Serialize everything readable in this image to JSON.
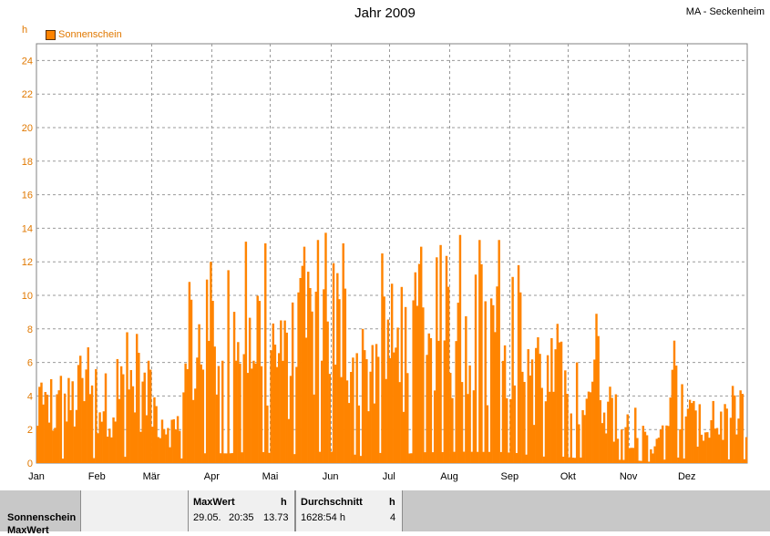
{
  "chart_data": {
    "type": "bar",
    "title": "Jahr 2009",
    "station": "MA - Seckenheim",
    "unit": "h",
    "series": [
      {
        "name": "Sonnenschein",
        "color": "#ff8400"
      }
    ],
    "ylim": [
      0,
      25
    ],
    "yticks": [
      0,
      2,
      4,
      6,
      8,
      10,
      12,
      14,
      16,
      18,
      20,
      22,
      24
    ],
    "months": [
      "Jan",
      "Feb",
      "Mär",
      "Apr",
      "Mai",
      "Jun",
      "Jul",
      "Aug",
      "Sep",
      "Okt",
      "Nov",
      "Dez"
    ],
    "month_start_days": [
      1,
      32,
      60,
      91,
      121,
      152,
      182,
      213,
      244,
      274,
      305,
      335
    ],
    "days_in_year": 365,
    "grid": true,
    "legend": "top-left",
    "approx_daily_peaks": [
      {
        "day": 3,
        "value": 4.8
      },
      {
        "day": 8,
        "value": 5.0
      },
      {
        "day": 13,
        "value": 5.2
      },
      {
        "day": 23,
        "value": 6.4
      },
      {
        "day": 27,
        "value": 6.9
      },
      {
        "day": 31,
        "value": 5.6
      },
      {
        "day": 42,
        "value": 6.2
      },
      {
        "day": 47,
        "value": 7.8
      },
      {
        "day": 52,
        "value": 7.7
      },
      {
        "day": 58,
        "value": 6.1
      },
      {
        "day": 73,
        "value": 2.8
      },
      {
        "day": 79,
        "value": 10.8
      },
      {
        "day": 90,
        "value": 12.0
      },
      {
        "day": 99,
        "value": 11.5
      },
      {
        "day": 108,
        "value": 13.2
      },
      {
        "day": 118,
        "value": 13.1
      },
      {
        "day": 128,
        "value": 8.5
      },
      {
        "day": 138,
        "value": 12.9
      },
      {
        "day": 145,
        "value": 13.3
      },
      {
        "day": 149,
        "value": 13.73
      },
      {
        "day": 158,
        "value": 13.1
      },
      {
        "day": 168,
        "value": 8.0
      },
      {
        "day": 178,
        "value": 12.5
      },
      {
        "day": 188,
        "value": 10.5
      },
      {
        "day": 198,
        "value": 12.9
      },
      {
        "day": 208,
        "value": 13.0
      },
      {
        "day": 218,
        "value": 13.6
      },
      {
        "day": 228,
        "value": 13.3
      },
      {
        "day": 238,
        "value": 13.3
      },
      {
        "day": 248,
        "value": 11.8
      },
      {
        "day": 258,
        "value": 7.5
      },
      {
        "day": 268,
        "value": 8.3
      },
      {
        "day": 278,
        "value": 6.0
      },
      {
        "day": 288,
        "value": 8.9
      },
      {
        "day": 298,
        "value": 4.1
      },
      {
        "day": 308,
        "value": 3.3
      },
      {
        "day": 318,
        "value": 1.0
      },
      {
        "day": 328,
        "value": 7.3
      },
      {
        "day": 338,
        "value": 3.7
      },
      {
        "day": 348,
        "value": 3.7
      },
      {
        "day": 358,
        "value": 4.6
      }
    ]
  },
  "summary": {
    "row_label": "Sonnenschein",
    "row_label_2": "MaxWert",
    "max_header": "MaxWert",
    "max_unit": "h",
    "max_date": "29.05.",
    "max_time": "20:35",
    "max_value": "13.73",
    "avg_header": "Durchschnitt",
    "avg_unit": "h",
    "avg_value": "1628:54 h",
    "avg_count": "4"
  }
}
